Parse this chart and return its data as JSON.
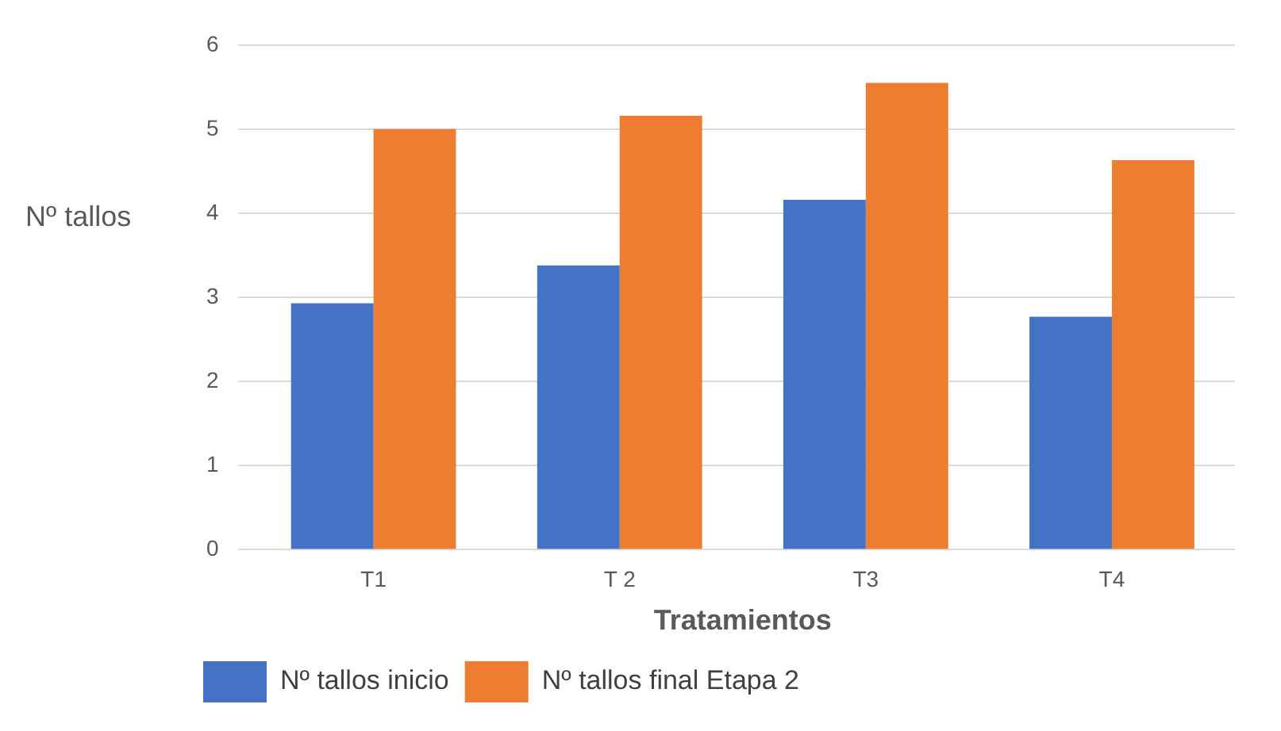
{
  "chart_data": {
    "type": "bar",
    "xlabel": "Tratamientos",
    "ylabel": "Nº tallos",
    "categories": [
      "T1",
      "T 2",
      "T3",
      "T4"
    ],
    "series": [
      {
        "name": "Nº tallos inicio",
        "color": "#4472c4",
        "values": [
          2.93,
          3.38,
          4.16,
          2.77
        ]
      },
      {
        "name": "Nº tallos final Etapa 2",
        "color": "#ed7d31",
        "values": [
          5.0,
          5.16,
          5.55,
          4.63
        ]
      }
    ],
    "ylim": [
      0,
      6
    ],
    "yticks": [
      0,
      1,
      2,
      3,
      4,
      5,
      6
    ],
    "grid": "y",
    "legend": "bottom left"
  }
}
